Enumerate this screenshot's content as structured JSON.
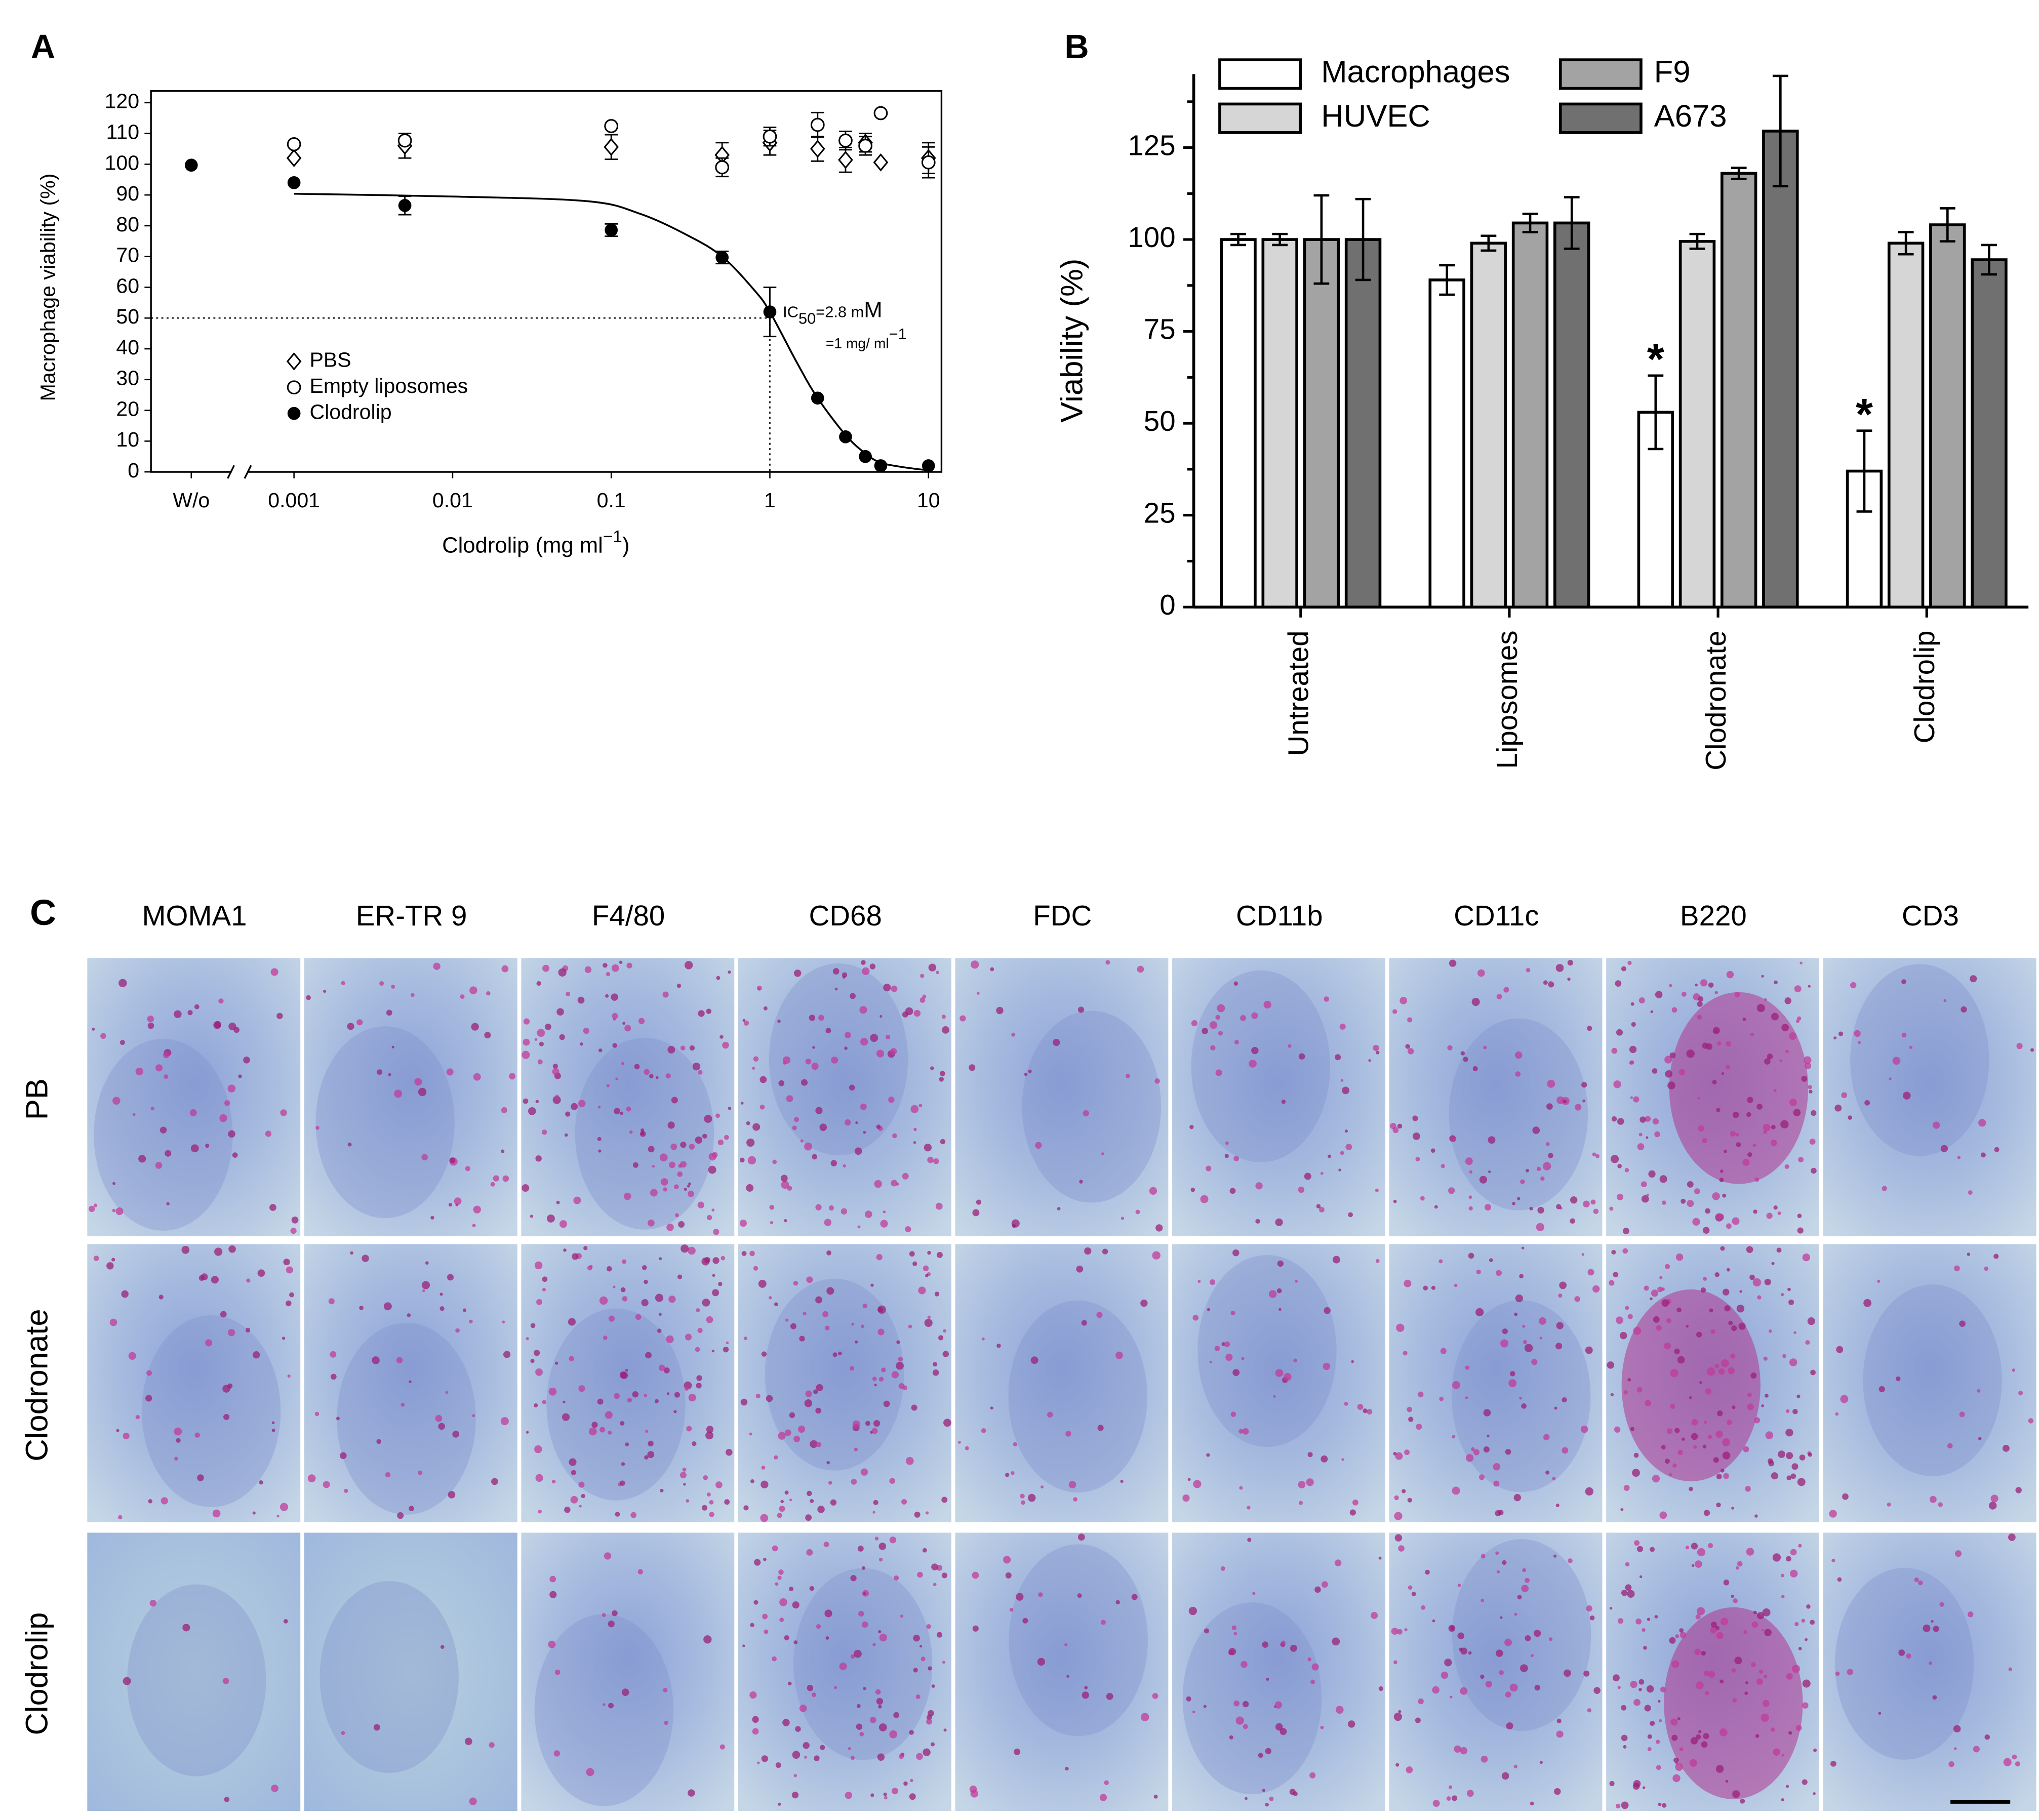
{
  "chart_data": [
    {
      "type": "scatter",
      "panel_label": "A",
      "y_label": "Macrophage viability (%)",
      "x_label": [
        "Clodrolip (mg ml",
        "−1",
        ")"
      ],
      "log_x": true,
      "xlim": [
        0.001,
        10
      ],
      "ylim": [
        0,
        120
      ],
      "xticks": [
        0.001,
        0.01,
        0.1,
        1,
        10
      ],
      "yticks": [
        0,
        10,
        20,
        30,
        40,
        50,
        60,
        70,
        80,
        90,
        100,
        110,
        120
      ],
      "control_label": "W/o",
      "legend": "lower left",
      "x": [
        0.001,
        0.005,
        0.1,
        0.5,
        1,
        2,
        3,
        4,
        5,
        10
      ],
      "series": [
        {
          "name": "PBS",
          "marker": "diamond",
          "color": "#000000",
          "values": [
            102,
            106,
            105.6,
            103,
            107,
            105,
            101.4,
            107,
            100.6,
            102
          ],
          "errors": [
            null,
            4,
            4,
            4,
            4,
            4,
            4,
            3,
            null,
            5
          ],
          "control": null
        },
        {
          "name": "Empty liposomes",
          "marker": "open-circle",
          "color": "#000000",
          "values": [
            106.5,
            107.7,
            112.4,
            99,
            109,
            112.8,
            107.7,
            106,
            116.6,
            100.6
          ],
          "errors": [
            null,
            null,
            null,
            3,
            3,
            4,
            3,
            3,
            null,
            5
          ],
          "control": null
        },
        {
          "name": "Clodrolip",
          "marker": "filled-circle",
          "color": "#000000",
          "values": [
            94,
            86.6,
            78.6,
            69.7,
            52,
            24,
            11.4,
            5,
            2,
            2
          ],
          "errors": [
            null,
            3,
            2,
            2,
            8,
            null,
            null,
            null,
            null,
            null
          ],
          "control": 99.7
        }
      ],
      "fit": {
        "x": [
          0.001,
          0.01,
          0.07,
          0.15,
          0.3,
          0.5,
          0.8,
          1,
          1.5,
          2,
          3,
          4,
          5,
          7,
          10
        ],
        "values": [
          90.4,
          89.5,
          88,
          84,
          77,
          70,
          59,
          52,
          35,
          24,
          12,
          6,
          3,
          1.5,
          0.5
        ]
      },
      "reference": {
        "x": 1,
        "y": 50
      },
      "ic50": {
        "prefix": "IC",
        "sub": "50",
        "text": "=2.8 m",
        "unit": "M"
      },
      "ic50_mass": {
        "text": "=1 mg/ ml",
        "sup": "−1"
      }
    },
    {
      "type": "bar",
      "panel_label": "B",
      "y_label": "Viability (%)",
      "categories": [
        "Untreated",
        "Liposomes",
        "Clodronate",
        "Clodrolip"
      ],
      "ylim": [
        0,
        145
      ],
      "yticks": [
        0,
        25,
        50,
        75,
        100,
        125
      ],
      "legend": "top",
      "series": [
        {
          "name": "Macrophages",
          "color": "#ffffff",
          "values": [
            100,
            89,
            53,
            37
          ],
          "errors": [
            1.5,
            4,
            10,
            11
          ]
        },
        {
          "name": "HUVEC",
          "color": "#d6d6d6",
          "values": [
            100,
            99,
            99.5,
            99
          ],
          "errors": [
            1.5,
            2,
            2,
            3
          ]
        },
        {
          "name": "F9",
          "color": "#a3a3a3",
          "values": [
            100,
            104.5,
            118,
            104
          ],
          "errors": [
            12,
            2.5,
            1.5,
            4.5
          ]
        },
        {
          "name": "A673",
          "color": "#707070",
          "values": [
            100,
            104.5,
            129.5,
            94.5
          ],
          "errors": [
            11,
            7,
            15,
            4
          ]
        }
      ],
      "markers": [
        null,
        null,
        "*",
        "*"
      ]
    }
  ],
  "panel_c": {
    "panel_label": "C",
    "columns": [
      "MOMA1",
      "ER-TR 9",
      "F4/80",
      "CD68",
      "FDC",
      "CD11b",
      "CD11c",
      "B220",
      "CD3"
    ],
    "rows": [
      "PB",
      "Clodronate",
      "Clodrolip"
    ]
  }
}
